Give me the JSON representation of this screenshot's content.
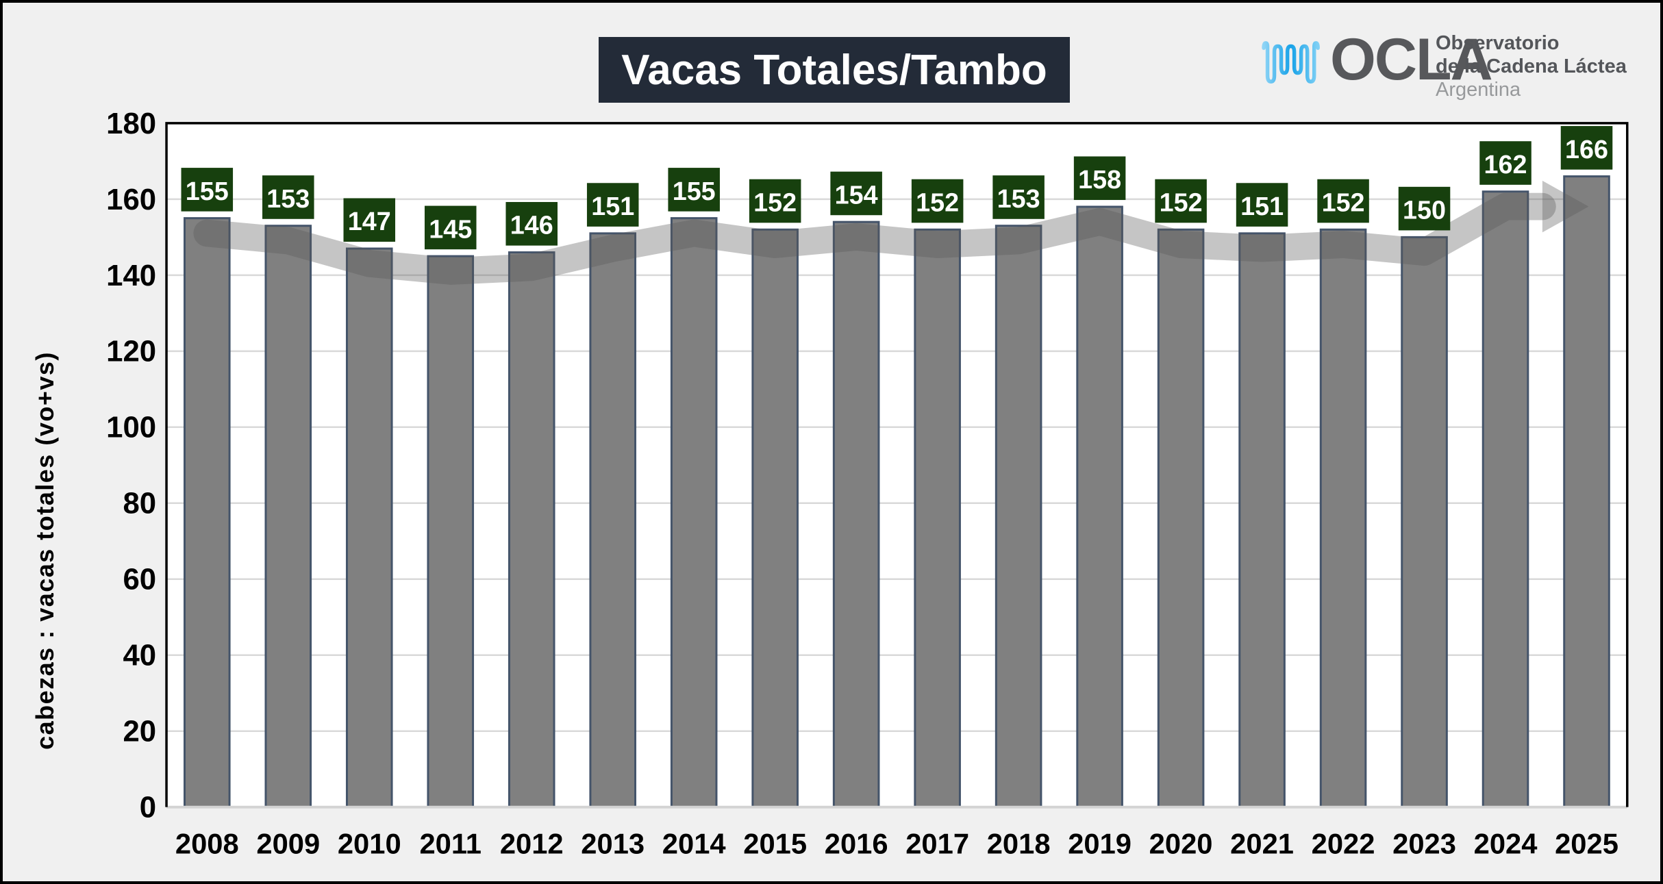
{
  "page": {
    "background": "#F0F0F0",
    "frame_color": "#000000",
    "title_box_color": "#232B38",
    "title_text_color": "#FFFFFF"
  },
  "title": "Vacas Totales/Tambo",
  "logo": {
    "acronym": "OCLA",
    "org_line1": "Observatorio",
    "org_line2": "de la Cadena Láctea",
    "org_line3": "Argentina",
    "wave_color_start": "#8ED4F6",
    "wave_color_mid": "#17A2E8",
    "wave_color_end": "#7FD0F5",
    "text_color": "#57585B",
    "light_text_color": "#97999B"
  },
  "chart_data": {
    "type": "bar",
    "title": "Vacas Totales/Tambo",
    "categories": [
      "2008",
      "2009",
      "2010",
      "2011",
      "2012",
      "2013",
      "2014",
      "2015",
      "2016",
      "2017",
      "2018",
      "2019",
      "2020",
      "2021",
      "2022",
      "2023",
      "2024",
      "2025"
    ],
    "values": [
      155,
      153,
      147,
      145,
      146,
      151,
      155,
      152,
      154,
      152,
      153,
      158,
      152,
      151,
      152,
      150,
      162,
      166
    ],
    "xlabel": "",
    "ylabel": "cabezas : vacas totales (vo+vs)",
    "ylim": [
      0,
      180
    ],
    "ytick_step": 20,
    "grid": true,
    "legend": false,
    "plot_background": "#FFFFFF",
    "gridline_color": "#D9D9D9",
    "axis_line_color": "#D3D3D3",
    "plot_border_color": "#000000",
    "bar_fill": "#808080",
    "bar_border": "#44546A",
    "data_label_bg": "#17400E",
    "data_label_color": "#FFFFFF",
    "tick_label_color": "#000000",
    "trend_arrow": {
      "show": true,
      "color": "#5A5A5A",
      "opacity": 0.35,
      "direction": "right"
    }
  }
}
